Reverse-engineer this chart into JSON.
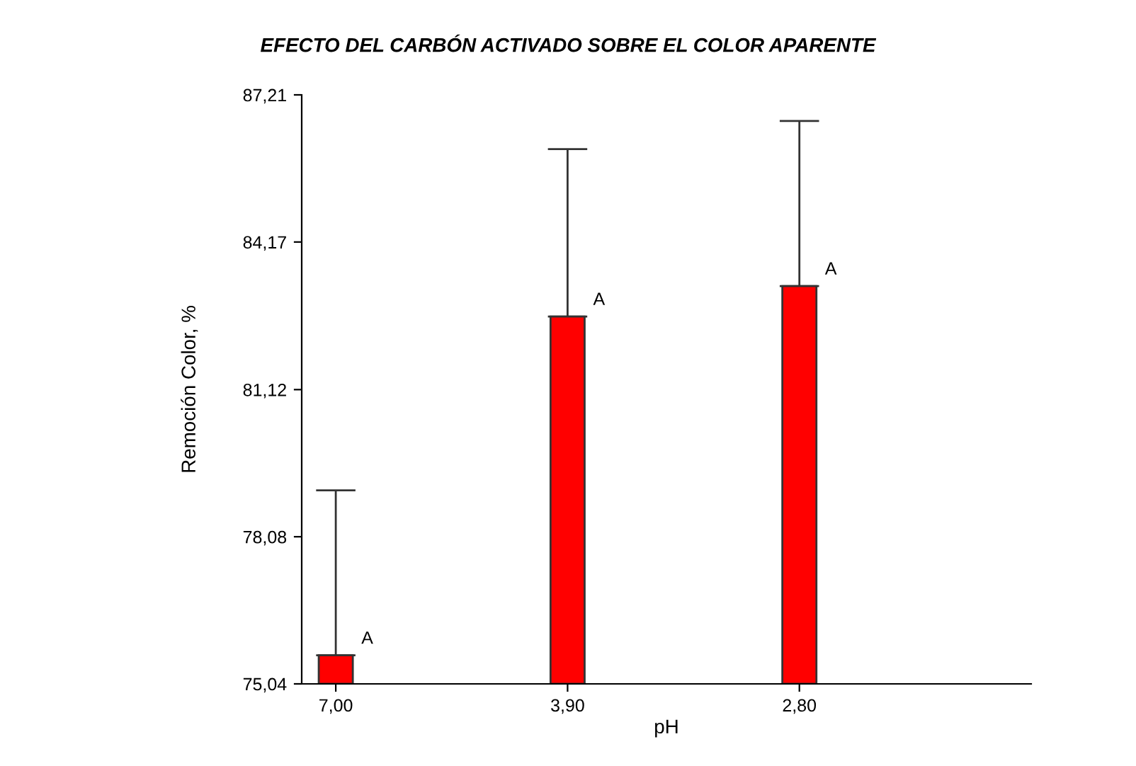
{
  "chart_data": {
    "type": "bar",
    "title": "EFECTO DEL CARBÓN ACTIVADO SOBRE EL COLOR APARENTE",
    "xlabel": "pH",
    "ylabel": "Remoción Color, %",
    "categories": [
      "7,00",
      "3,90",
      "2,80"
    ],
    "values": [
      75.63,
      82.63,
      83.26
    ],
    "errors": [
      [
        75.63,
        79.04
      ],
      [
        82.63,
        86.09
      ],
      [
        83.26,
        86.67
      ]
    ],
    "color": "#ff0000",
    "ylim": [
      75.04,
      87.21
    ],
    "yticks": [
      {
        "value": 75.04,
        "label": "75,04"
      },
      {
        "value": 78.08,
        "label": "78,08"
      },
      {
        "value": 81.12,
        "label": "81,12"
      },
      {
        "value": 84.17,
        "label": "84,17"
      },
      {
        "value": 87.21,
        "label": "87,21"
      }
    ],
    "annotations": [
      {
        "text": "A",
        "x": "7,00",
        "y": 75.63
      },
      {
        "text": "A",
        "x": "3,90",
        "y": 82.63
      },
      {
        "text": "A",
        "x": "2,80",
        "y": 83.26
      }
    ],
    "grid": false,
    "legend": false
  }
}
